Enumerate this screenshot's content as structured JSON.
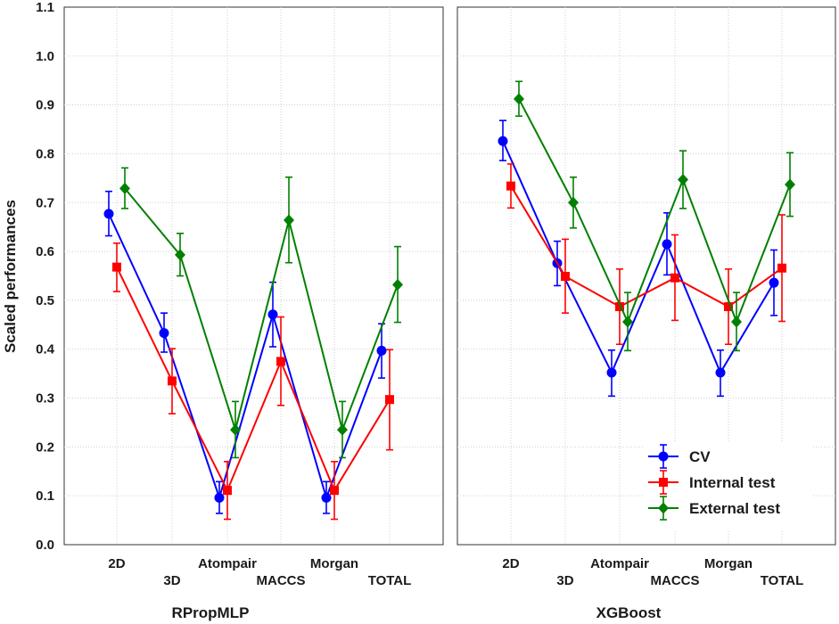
{
  "chart_data": [
    {
      "type": "line",
      "title": "RPropMLP",
      "xlabel": "RPropMLP",
      "ylabel": "Scaled performances",
      "ylim": [
        0.0,
        1.1
      ],
      "yticks": [
        "0.0",
        "0.1",
        "0.2",
        "0.3",
        "0.4",
        "0.5",
        "0.6",
        "0.7",
        "0.8",
        "0.9",
        "1.0",
        "1.1"
      ],
      "categories": [
        "2D",
        "3D",
        "Atompair",
        "MACCS",
        "Morgan",
        "TOTAL"
      ],
      "grid": true,
      "series": [
        {
          "name": "CV",
          "color": "#0000ff",
          "marker": "circle",
          "values": [
            0.677,
            0.433,
            0.096,
            0.471,
            0.096,
            0.397
          ],
          "err_low": [
            0.632,
            0.394,
            0.064,
            0.405,
            0.064,
            0.341
          ],
          "err_high": [
            0.723,
            0.474,
            0.129,
            0.537,
            0.129,
            0.452
          ]
        },
        {
          "name": "Internal test",
          "color": "#ff0000",
          "marker": "square",
          "values": [
            0.568,
            0.335,
            0.111,
            0.375,
            0.111,
            0.297
          ],
          "err_low": [
            0.518,
            0.268,
            0.052,
            0.285,
            0.052,
            0.194
          ],
          "err_high": [
            0.617,
            0.401,
            0.17,
            0.466,
            0.17,
            0.399
          ]
        },
        {
          "name": "External test",
          "color": "#008000",
          "marker": "diamond",
          "values": [
            0.729,
            0.593,
            0.235,
            0.664,
            0.235,
            0.532
          ],
          "err_low": [
            0.688,
            0.55,
            0.178,
            0.577,
            0.178,
            0.455
          ],
          "err_high": [
            0.771,
            0.637,
            0.293,
            0.752,
            0.293,
            0.61
          ]
        }
      ]
    },
    {
      "type": "line",
      "title": "XGBoost",
      "xlabel": "XGBoost",
      "ylabel": "",
      "ylim": [
        0.0,
        1.1
      ],
      "categories": [
        "2D",
        "3D",
        "Atompair",
        "MACCS",
        "Morgan",
        "TOTAL"
      ],
      "grid": true,
      "series": [
        {
          "name": "CV",
          "color": "#0000ff",
          "marker": "circle",
          "values": [
            0.826,
            0.576,
            0.352,
            0.615,
            0.352,
            0.536
          ],
          "err_low": [
            0.786,
            0.53,
            0.304,
            0.552,
            0.304,
            0.469
          ],
          "err_high": [
            0.868,
            0.621,
            0.398,
            0.679,
            0.398,
            0.603
          ]
        },
        {
          "name": "Internal test",
          "color": "#ff0000",
          "marker": "square",
          "values": [
            0.734,
            0.549,
            0.487,
            0.546,
            0.487,
            0.566
          ],
          "err_low": [
            0.689,
            0.474,
            0.41,
            0.459,
            0.41,
            0.457
          ],
          "err_high": [
            0.779,
            0.625,
            0.564,
            0.634,
            0.564,
            0.675
          ]
        },
        {
          "name": "External test",
          "color": "#008000",
          "marker": "diamond",
          "values": [
            0.912,
            0.7,
            0.456,
            0.747,
            0.456,
            0.737
          ],
          "err_low": [
            0.877,
            0.648,
            0.397,
            0.688,
            0.397,
            0.672
          ],
          "err_high": [
            0.948,
            0.752,
            0.516,
            0.806,
            0.516,
            0.802
          ]
        }
      ]
    }
  ],
  "legend": {
    "placement": "bottom-right of XGBoost panel",
    "entries": [
      {
        "label": "CV",
        "color": "#0000ff",
        "marker": "circle"
      },
      {
        "label": "Internal test",
        "color": "#ff0000",
        "marker": "square"
      },
      {
        "label": "External test",
        "color": "#008000",
        "marker": "diamond"
      }
    ]
  }
}
